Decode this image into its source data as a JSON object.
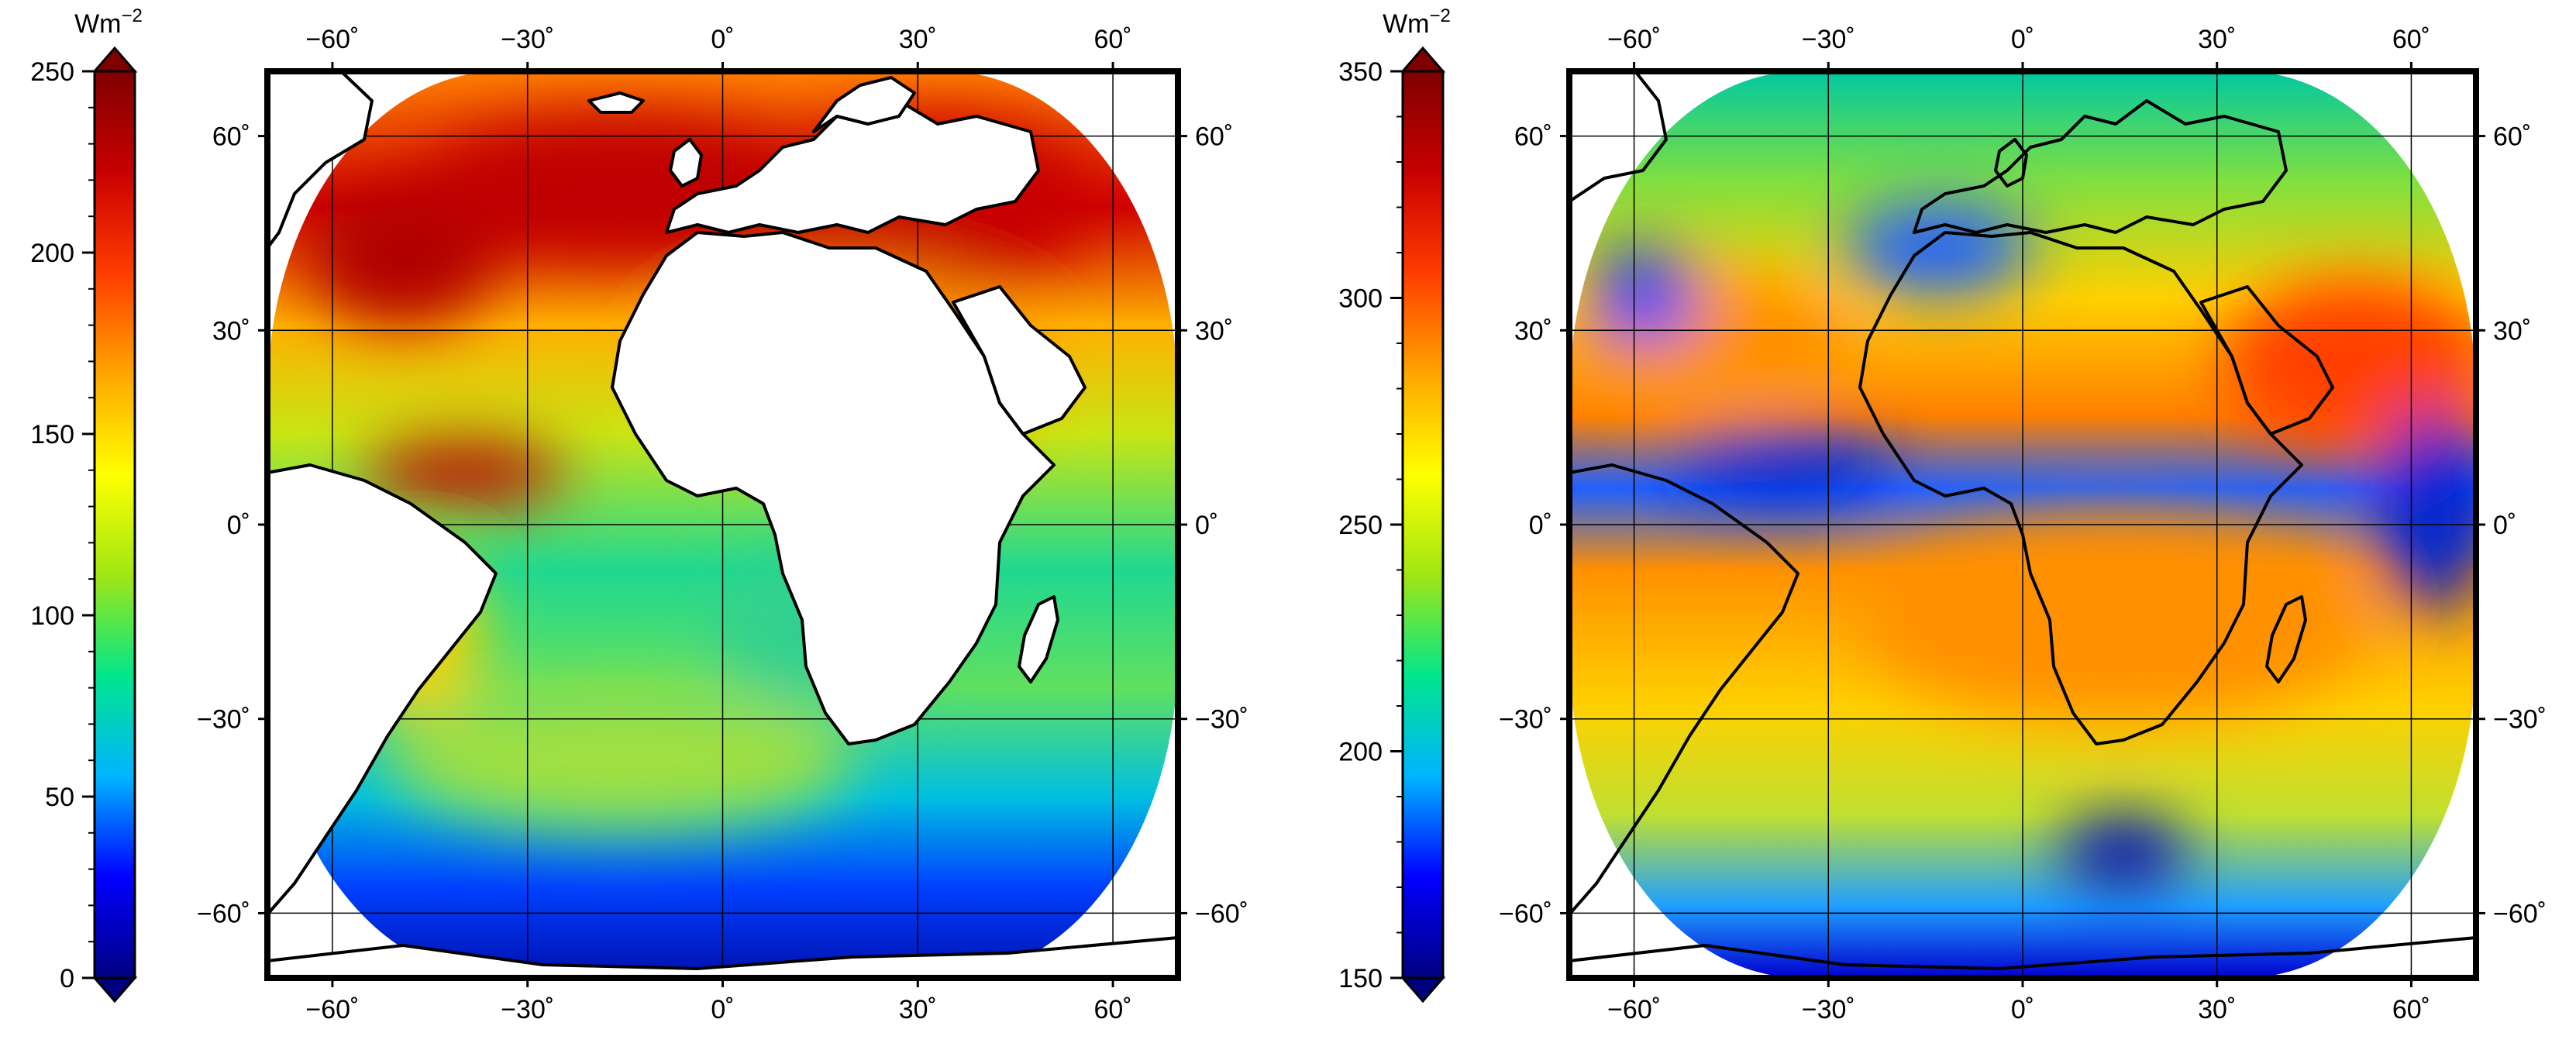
{
  "colorbar_colors": [
    "#00007f",
    "#0000ff",
    "#00b4ff",
    "#00e68c",
    "#a0e614",
    "#ffff00",
    "#ffa500",
    "#ff3c00",
    "#c80000",
    "#7f0000"
  ],
  "land_color": "#ffffff",
  "coast_color": "#000000",
  "grid_color": "#000000",
  "panels": [
    {
      "id": "left",
      "colorbar": {
        "unit": "Wm",
        "unit_sup": "−2",
        "ticks": [
          0,
          50,
          100,
          150,
          200,
          250
        ],
        "range": [
          0,
          250
        ],
        "extend": "both"
      },
      "map": {
        "lon_range": [
          -70,
          70
        ],
        "lat_range": [
          -70,
          70
        ],
        "lon_ticks": [
          -60,
          -30,
          0,
          30,
          60
        ],
        "lat_ticks": [
          -60,
          -30,
          0,
          30,
          60
        ],
        "lon_labels": [
          "−60˚",
          "−30˚",
          "0˚",
          "30˚",
          "60˚"
        ],
        "lat_labels": [
          "−60˚",
          "−30˚",
          "0˚",
          "30˚",
          "60˚"
        ],
        "field": "shortwave flux (high over Sahara, mid-latitude north; low over southern ocean)"
      }
    },
    {
      "id": "right",
      "colorbar": {
        "unit": "Wm",
        "unit_sup": "−2",
        "ticks": [
          150,
          200,
          250,
          300,
          350
        ],
        "range": [
          150,
          350
        ],
        "extend": "both"
      },
      "map": {
        "lon_range": [
          -70,
          70
        ],
        "lat_range": [
          -70,
          70
        ],
        "lon_ticks": [
          -60,
          -30,
          0,
          30,
          60
        ],
        "lat_ticks": [
          -60,
          -30,
          0,
          30,
          60
        ],
        "lon_labels": [
          "−60˚",
          "−30˚",
          "0˚",
          "30˚",
          "60˚"
        ],
        "lat_labels": [
          "−60˚",
          "−30˚",
          "0˚",
          "30˚",
          "60˚"
        ],
        "field": "longwave flux (high over deserts/subtropics; low over ITCZ and polar regions)"
      }
    }
  ]
}
